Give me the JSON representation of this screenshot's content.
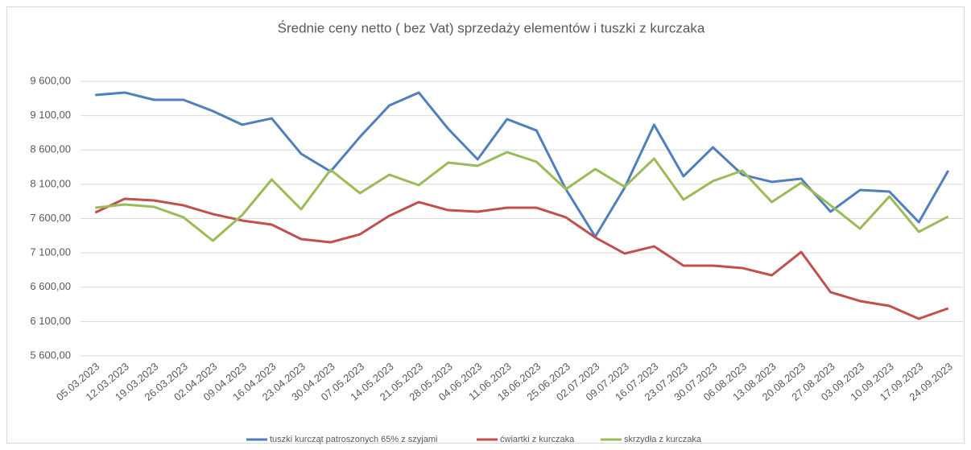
{
  "chart_data": {
    "type": "line",
    "title": "Średnie ceny netto ( bez Vat) sprzedaży elementów i tuszki z kurczaka",
    "categories": [
      "05.03.2023",
      "12.03.2023",
      "19.03.2023",
      "26.03.2023",
      "02.04.2023",
      "09.04.2023",
      "16.04.2023",
      "23.04.2023",
      "30.04.2023",
      "07.05.2023",
      "14.05.2023",
      "21.05.2023",
      "28.05.2023",
      "04.06.2023",
      "11.06.2023",
      "18.06.2023",
      "25.06.2023",
      "02.07.2023",
      "09.07.2023",
      "16.07.2023",
      "23.07.2023",
      "30.07.2023",
      "06.08.2023",
      "13.08.2023",
      "20.08.2023",
      "27.08.2023",
      "03.09.2023",
      "10.09.2023",
      "17.09.2023",
      "24.09.2023"
    ],
    "series": [
      {
        "name": "tuszki kurcząt patroszonych 65% z szyjami",
        "color": "#4f7fbd",
        "values": [
          9400,
          9436,
          9330,
          9330,
          9166,
          8967,
          9060,
          8544,
          8286,
          8790,
          9248,
          9436,
          8908,
          8462,
          9049,
          8884,
          8028,
          7336,
          8051,
          8967,
          8216,
          8638,
          8239,
          8134,
          8181,
          7700,
          8016,
          7993,
          7547,
          8298
        ]
      },
      {
        "name": "ćwiartki z kurczaka",
        "color": "#c0504d",
        "values": [
          7688,
          7887,
          7864,
          7793,
          7665,
          7571,
          7512,
          7301,
          7254,
          7371,
          7641,
          7840,
          7723,
          7700,
          7758,
          7758,
          7618,
          7324,
          7090,
          7195,
          6914,
          6914,
          6879,
          6773,
          7113,
          6527,
          6398,
          6327,
          6140,
          6292
        ]
      },
      {
        "name": "skrzydła z kurczaka",
        "color": "#9bbb59",
        "values": [
          7758,
          7805,
          7770,
          7618,
          7277,
          7653,
          8169,
          7735,
          8310,
          7970,
          8239,
          8087,
          8415,
          8368,
          8568,
          8427,
          8028,
          8321,
          8063,
          8474,
          7876,
          8146,
          8298,
          7840,
          8122,
          7793,
          7453,
          7922,
          7407,
          7630
        ]
      }
    ],
    "ylim": [
      5600,
      9600
    ],
    "yticks": [
      {
        "value": 5600,
        "label": "5 600,00"
      },
      {
        "value": 6100,
        "label": "6 100,00"
      },
      {
        "value": 6600,
        "label": "6 600,00"
      },
      {
        "value": 7100,
        "label": "7 100,00"
      },
      {
        "value": 7600,
        "label": "7 600,00"
      },
      {
        "value": 8100,
        "label": "8 100,00"
      },
      {
        "value": 8600,
        "label": "8 600,00"
      },
      {
        "value": 9100,
        "label": "9 100,00"
      },
      {
        "value": 9600,
        "label": "9 600,00"
      }
    ],
    "grid": true,
    "legend": "bottom"
  }
}
